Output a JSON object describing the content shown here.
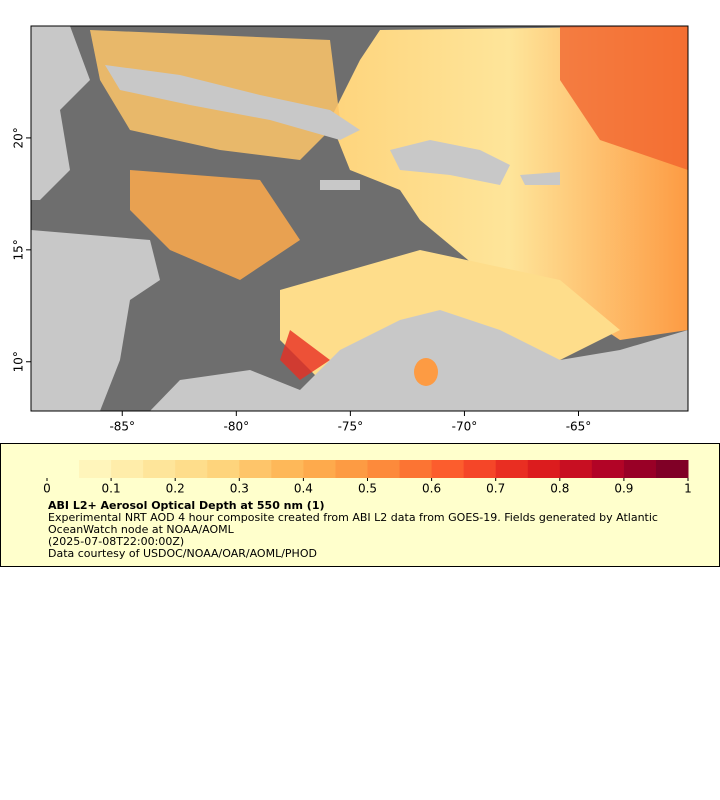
{
  "chart_data": {
    "type": "map",
    "xlim": [
      -89,
      -60.2
    ],
    "ylim": [
      7.8,
      25
    ],
    "xticks": [
      {
        "value": -85,
        "label": "-85°"
      },
      {
        "value": -80,
        "label": "-80°"
      },
      {
        "value": -75,
        "label": "-75°"
      },
      {
        "value": -70,
        "label": "-70°"
      },
      {
        "value": -65,
        "label": "-65°"
      }
    ],
    "yticks": [
      {
        "value": 10,
        "label": "10°"
      },
      {
        "value": 15,
        "label": "15°"
      },
      {
        "value": 20,
        "label": "20°"
      }
    ],
    "colorbar": {
      "lim": [
        0,
        1
      ],
      "ticks": [
        0,
        0.1,
        0.2,
        0.3,
        0.4,
        0.5,
        0.6,
        0.7,
        0.8,
        0.9,
        1
      ],
      "colors": [
        "#ffffcc",
        "#fff5bb",
        "#ffedaa",
        "#fee59a",
        "#fedd8b",
        "#fed47c",
        "#fec56a",
        "#feb859",
        "#feaa4c",
        "#fd9b43",
        "#fd8a3b",
        "#fc7433",
        "#fc5d2d",
        "#f54628",
        "#e92e22",
        "#dc1c1e",
        "#c80f22",
        "#b20426",
        "#990026",
        "#800026"
      ]
    },
    "legend": {
      "title": "ABI L2+ Aerosol Optical Depth at 550 nm (1)",
      "description": "Experimental NRT AOD 4 hour composite created from ABI L2 data from GOES-19. Fields generated by Atlantic OceanWatch node at NOAA/AOML",
      "time": "(2025-07-08T22:00:00Z)",
      "credit": "Data courtesy of USDOC/NOAA/OAR/AOML/PHOD"
    }
  }
}
